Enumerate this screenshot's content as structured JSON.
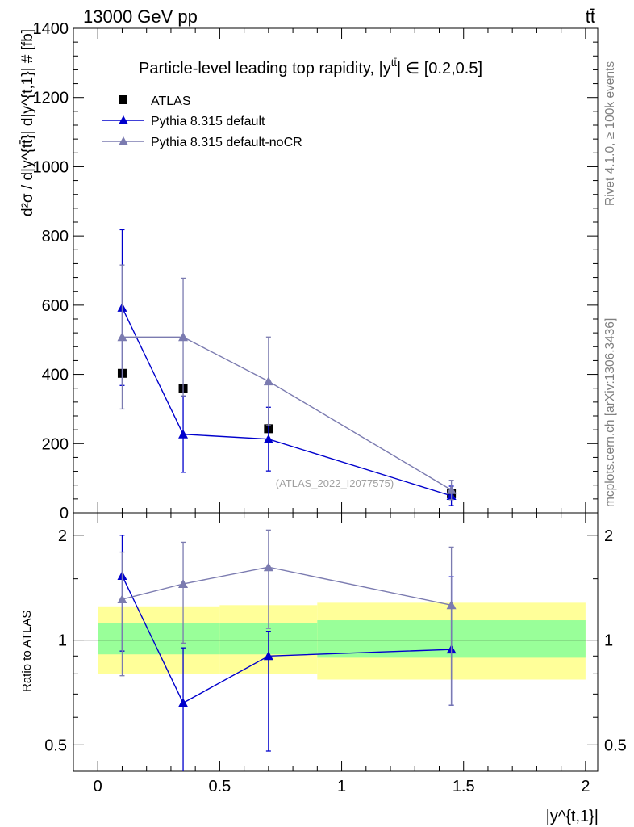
{
  "header": {
    "energy_label": "13000 GeV pp",
    "process_label": "tt̄"
  },
  "side_labels": {
    "rivet": "Rivet 4.1.0, ≥ 100k events",
    "mcplots": "mcplots.cern.ch [arXiv:1306.3436]"
  },
  "chart_data": [
    {
      "type": "line",
      "panel": "main",
      "title": "Particle-level leading top rapidity, |y^{tt̄}| ∈ [0.2,0.5]",
      "title_text": "Particle-level leading top rapidity, |y",
      "title_sup": "tt̄",
      "title_tail": "| ∈ [0.2,0.5]",
      "ylabel": "d²σ / d|y^{tt̄}| d|y^{t,1}| # [fb]",
      "xlabel": "|y^{t,1}|",
      "xlim": [
        -0.1,
        2.05
      ],
      "ylim": [
        0,
        1400
      ],
      "yticks": [
        0,
        200,
        400,
        600,
        800,
        1000,
        1200,
        1400
      ],
      "ytick_labels": [
        "0",
        "200",
        "400",
        "600",
        "800",
        "1000",
        "1200",
        "1400"
      ],
      "watermark": "(ATLAS_2022_I2077575)",
      "legend": [
        "ATLAS",
        "Pythia 8.315 default",
        "Pythia 8.315 default-noCR"
      ],
      "series": [
        {
          "name": "ATLAS",
          "color": "#000000",
          "marker": "square",
          "x": [
            0.1,
            0.35,
            0.7,
            1.45
          ],
          "y": [
            403,
            360,
            243,
            55
          ],
          "err": [
            10,
            10,
            8,
            4
          ]
        },
        {
          "name": "Pythia 8.315 default",
          "color": "#0000cc",
          "marker": "triangle",
          "x": [
            0.1,
            0.35,
            0.7,
            1.45
          ],
          "y": [
            593,
            227,
            213,
            49
          ],
          "err": [
            225,
            110,
            92,
            28
          ]
        },
        {
          "name": "Pythia 8.315 default-noCR",
          "color": "#7b7bb0",
          "marker": "triangle",
          "x": [
            0.1,
            0.35,
            0.7,
            1.45
          ],
          "y": [
            508,
            508,
            380,
            66
          ],
          "err": [
            208,
            170,
            128,
            28
          ]
        }
      ]
    },
    {
      "type": "line",
      "panel": "ratio",
      "ylabel": "Ratio to ATLAS",
      "xlabel": "|y^{t,1}|",
      "xlim": [
        -0.1,
        2.05
      ],
      "ylim": [
        0.42,
        2.32
      ],
      "yscale": "log",
      "yticks": [
        0.5,
        1,
        2
      ],
      "ytick_labels": [
        "0.5",
        "1",
        "2"
      ],
      "xticks": [
        0,
        0.5,
        1,
        1.5,
        2
      ],
      "xtick_labels": [
        "0",
        "0.5",
        "1",
        "1.5",
        "2"
      ],
      "bands": [
        {
          "x0": 0.0,
          "x1": 0.5,
          "stat_lo": 0.91,
          "stat_hi": 1.12,
          "tot_lo": 0.8,
          "tot_hi": 1.25
        },
        {
          "x0": 0.5,
          "x1": 0.9,
          "stat_lo": 0.91,
          "stat_hi": 1.12,
          "tot_lo": 0.8,
          "tot_hi": 1.26
        },
        {
          "x0": 0.9,
          "x1": 2.0,
          "stat_lo": 0.89,
          "stat_hi": 1.14,
          "tot_lo": 0.77,
          "tot_hi": 1.28
        }
      ],
      "band_colors": {
        "stat": "#99ff99",
        "tot": "#ffff99"
      },
      "series": [
        {
          "name": "Pythia 8.315 default",
          "color": "#0000cc",
          "x": [
            0.1,
            0.35,
            0.7,
            1.45
          ],
          "y": [
            1.53,
            0.66,
            0.9,
            0.94
          ],
          "err_lo": [
            0.6,
            0.3,
            0.42,
            0.29
          ],
          "err_hi": [
            0.47,
            0.29,
            0.16,
            0.58
          ]
        },
        {
          "name": "Pythia 8.315 default-noCR",
          "color": "#7b7bb0",
          "x": [
            0.1,
            0.35,
            0.7,
            1.45
          ],
          "y": [
            1.31,
            1.45,
            1.62,
            1.26
          ],
          "err_lo": [
            0.52,
            0.47,
            0.54,
            0.61
          ],
          "err_hi": [
            0.48,
            0.46,
            0.45,
            0.59
          ]
        }
      ]
    }
  ]
}
